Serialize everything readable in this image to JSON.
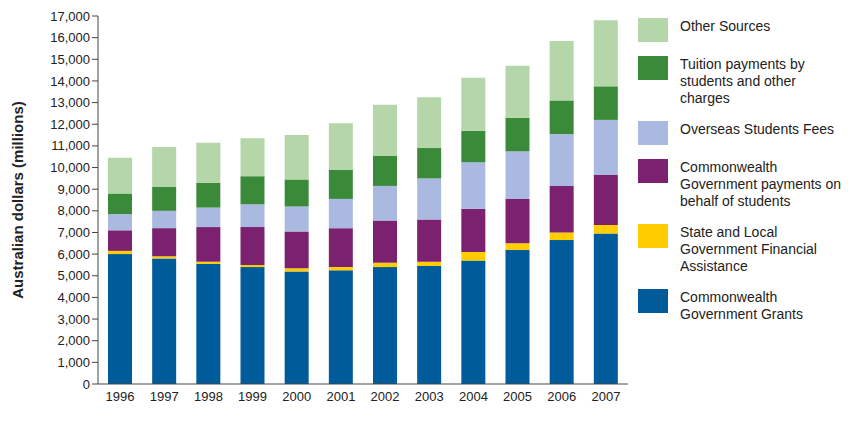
{
  "chart_data": {
    "type": "bar",
    "stacked": true,
    "y_label": "Australian dollars (millions)",
    "categories": [
      "1996",
      "1997",
      "1998",
      "1999",
      "2000",
      "2001",
      "2002",
      "2003",
      "2004",
      "2005",
      "2006",
      "2007"
    ],
    "series": [
      {
        "name": "Commonwealth Government Grants",
        "color": "#005b9a",
        "values": [
          6000,
          5800,
          5550,
          5400,
          5200,
          5250,
          5400,
          5450,
          5700,
          6200,
          6650,
          6950
        ]
      },
      {
        "name": "State and Local Government Financial Assistance",
        "color": "#ffcc00",
        "values": [
          150,
          100,
          100,
          100,
          150,
          150,
          200,
          200,
          400,
          300,
          350,
          400
        ]
      },
      {
        "name": "Commonwealth Government payments on behalf of students",
        "color": "#7b2170",
        "values": [
          950,
          1300,
          1600,
          1750,
          1700,
          1800,
          1950,
          1950,
          2000,
          2050,
          2150,
          2300
        ]
      },
      {
        "name": "Overseas Students Fees",
        "color": "#a9b9e0",
        "values": [
          750,
          800,
          900,
          1050,
          1150,
          1350,
          1600,
          1900,
          2150,
          2200,
          2400,
          2550
        ]
      },
      {
        "name": "Tuition payments by students and other charges",
        "color": "#3a8a3a",
        "values": [
          950,
          1100,
          1150,
          1300,
          1250,
          1350,
          1400,
          1400,
          1450,
          1550,
          1550,
          1550
        ]
      },
      {
        "name": "Other Sources",
        "color": "#b4d6a8",
        "values": [
          1650,
          1850,
          1850,
          1750,
          2050,
          2150,
          2350,
          2350,
          2450,
          2400,
          2750,
          3050
        ]
      }
    ],
    "ylim": [
      0,
      17000
    ],
    "yticks": [
      0,
      {
        "value": 1000,
        "label": "1,000"
      },
      {
        "value": 2000,
        "label": "2,000"
      },
      {
        "value": 3000,
        "label": "3,000"
      },
      {
        "value": 4000,
        "label": "4,000"
      },
      {
        "value": 5000,
        "label": "5,000"
      },
      {
        "value": 6000,
        "label": "6,000"
      },
      {
        "value": 7000,
        "label": "7,000"
      },
      {
        "value": 8000,
        "label": "8,000"
      },
      {
        "value": 9000,
        "label": "9,000"
      },
      {
        "value": 10000,
        "label": "10,000"
      },
      {
        "value": 11000,
        "label": "11,000"
      },
      {
        "value": 12000,
        "label": "12,000"
      },
      {
        "value": 13000,
        "label": "13,000"
      },
      {
        "value": 14000,
        "label": "14,000"
      },
      {
        "value": 15000,
        "label": "15,000"
      },
      {
        "value": 16000,
        "label": "16,000"
      },
      {
        "value": 17000,
        "label": "17,000"
      }
    ],
    "grid": false,
    "legend": "right"
  }
}
